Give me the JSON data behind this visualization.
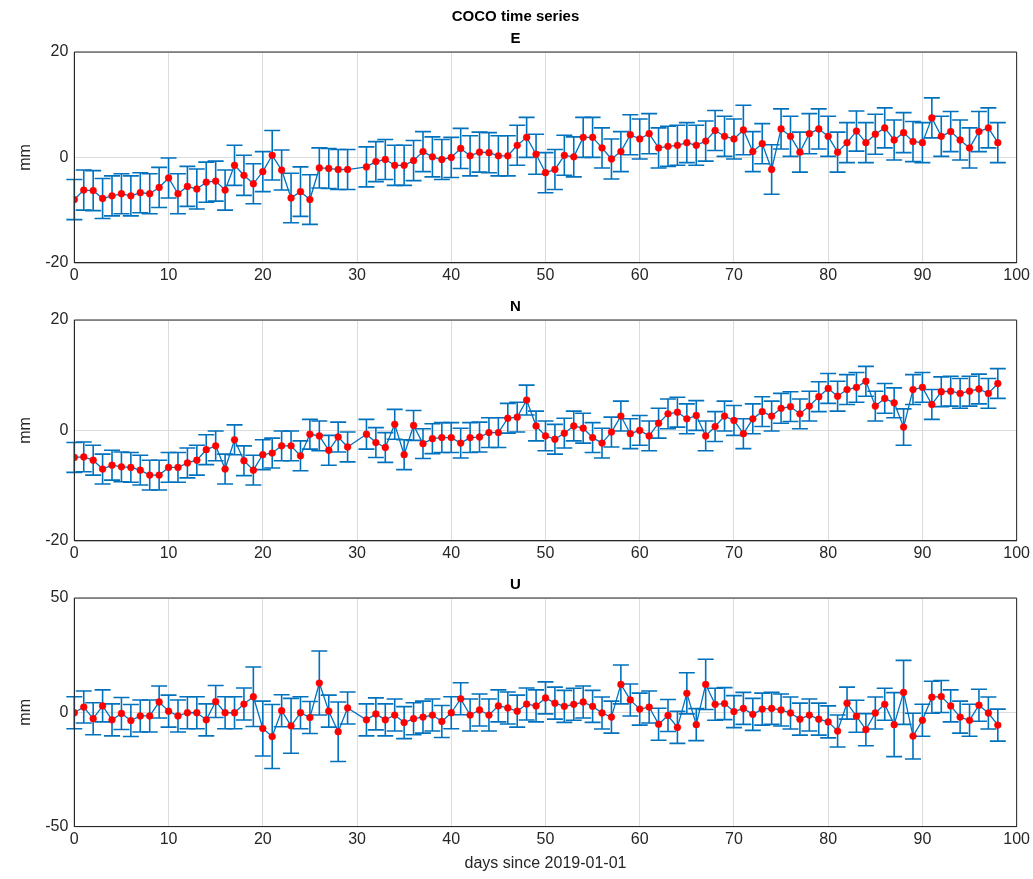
{
  "chart_data": [
    {
      "type": "line",
      "title": "COCO time series",
      "subtitle": "E",
      "ylabel": "mm",
      "x": [
        0,
        1,
        2,
        3,
        4,
        5,
        6,
        7,
        8,
        9,
        10,
        11,
        12,
        13,
        14,
        15,
        16,
        17,
        18,
        19,
        20,
        21,
        22,
        23,
        24,
        25,
        26,
        27,
        28,
        29,
        31,
        32,
        33,
        34,
        35,
        36,
        37,
        38,
        39,
        40,
        41,
        42,
        43,
        44,
        45,
        46,
        47,
        48,
        49,
        50,
        51,
        52,
        53,
        54,
        55,
        56,
        57,
        58,
        59,
        60,
        61,
        62,
        63,
        64,
        65,
        66,
        67,
        68,
        69,
        70,
        71,
        72,
        73,
        74,
        75,
        76,
        77,
        78,
        79,
        80,
        81,
        82,
        83,
        84,
        85,
        86,
        87,
        88,
        89,
        90,
        91,
        92,
        93,
        94,
        95,
        96,
        97,
        98
      ],
      "values": [
        -8,
        -6.2,
        -6.3,
        -7.8,
        -7.3,
        -6.9,
        -7.3,
        -6.7,
        -6.9,
        -5.7,
        -3.9,
        -6.9,
        -5.5,
        -6,
        -4.7,
        -4.5,
        -6.2,
        -1.5,
        -3.4,
        -5,
        -2.7,
        0.4,
        -2.4,
        -7.7,
        -6.5,
        -8,
        -2,
        -2.1,
        -2.3,
        -2.3,
        -1.8,
        -0.8,
        -0.4,
        -1.5,
        -1.5,
        -0.6,
        1.1,
        0.1,
        -0.4,
        0,
        1.7,
        0.3,
        1,
        0.9,
        0.3,
        0.3,
        2.3,
        3.8,
        0.6,
        -2.9,
        -2.3,
        0.4,
        0.1,
        3.8,
        3.8,
        1.8,
        -0.3,
        1.1,
        4.3,
        3.5,
        4.5,
        1.8,
        2.1,
        2.3,
        2.8,
        2.3,
        3.1,
        5.1,
        4,
        3.5,
        5.2,
        1.1,
        2.6,
        -2.3,
        5.4,
        4,
        1,
        4.5,
        5.4,
        4,
        1,
        2.8,
        5,
        2.8,
        4.4,
        5.6,
        3.3,
        4.7,
        3,
        2.8,
        7.5,
        4,
        4.9,
        3.3,
        1.8,
        4.9,
        5.6,
        2.8
      ],
      "errors": [
        3.8,
        3.8,
        3.8,
        3.8,
        3.8,
        3.8,
        3.8,
        3.8,
        3.8,
        3.8,
        3.8,
        3.8,
        3.8,
        3.8,
        3.8,
        3.8,
        3.8,
        3.8,
        3.8,
        3.8,
        3.8,
        4.7,
        3.8,
        4.7,
        4.7,
        4.7,
        3.8,
        3.8,
        3.8,
        3.8,
        3.8,
        3.8,
        3.8,
        3.8,
        3.8,
        3.8,
        3.8,
        3.8,
        3.8,
        3.8,
        3.8,
        3.8,
        3.8,
        3.8,
        3.8,
        3.8,
        3.8,
        3.8,
        3.8,
        3.8,
        3.8,
        3.8,
        3.8,
        3.8,
        3.8,
        3.8,
        3.8,
        3.8,
        3.8,
        3.8,
        3.8,
        3.8,
        3.8,
        3.8,
        3.8,
        3.8,
        3.8,
        3.8,
        3.8,
        3.8,
        4.7,
        3.8,
        3.8,
        4.7,
        3.8,
        3.8,
        3.8,
        3.8,
        3.8,
        3.8,
        3.8,
        3.8,
        3.8,
        3.8,
        3.8,
        3.8,
        3.8,
        3.8,
        3.8,
        3.8,
        3.8,
        3.8,
        3.8,
        3.8,
        3.8,
        3.8,
        3.8,
        3.8
      ],
      "color": "#0072bd",
      "colors": [
        "#ff0000",
        "#ff0000",
        "#ff0000",
        "#ff0000",
        "#ff0000",
        "#ff0000",
        "#ff0000",
        "#ff0000",
        "#ff0000",
        "#ff0000",
        "#ff0000",
        "#ff0000",
        "#ff0000",
        "#ff0000",
        "#ff0000",
        "#ff0000",
        "#ff0000",
        "#ff0000",
        "#ff0000",
        "#ff0000",
        "#ff0000",
        "#ff0000",
        "#ff0000",
        "#ff0000",
        "#ff0000",
        "#ff0000",
        "#ff0000",
        "#ff0000",
        "#ff0000",
        "#ff0000",
        "#ff0000",
        "#ff0000",
        "#ff0000",
        "#ff0000",
        "#ff0000",
        "#ff0000",
        "#ff0000",
        "#ff0000",
        "#ff0000",
        "#ff0000",
        "#ff0000",
        "#ff0000",
        "#ff0000",
        "#ff0000",
        "#ff0000",
        "#ff0000",
        "#ff0000",
        "#ff0000",
        "#ff0000",
        "#ff0000",
        "#ff0000",
        "#ff0000",
        "#ff0000",
        "#ff0000",
        "#ff0000",
        "#ff0000",
        "#ff0000",
        "#ff0000",
        "#ff0000",
        "#ff0000",
        "#ff0000",
        "#ff0000",
        "#ff0000",
        "#ff0000",
        "#ff0000",
        "#ff0000",
        "#ff0000",
        "#ff0000",
        "#ff0000",
        "#ff0000",
        "#ff0000",
        "#ff0000",
        "#ff0000",
        "#ff0000",
        "#ff0000",
        "#ff0000",
        "#ff0000",
        "#ff0000",
        "#ff0000",
        "#ff0000",
        "#ff0000",
        "#ff0000",
        "#ff0000",
        "#ff0000",
        "#ff0000",
        "#ff0000",
        "#ff0000",
        "#ff0000",
        "#ff0000",
        "#ff0000",
        "#ff0000",
        "#ff0000",
        "#ff0000",
        "#ff0000",
        "#ff0000",
        "#ff0000",
        "#ff0000",
        "#ff0000"
      ],
      "xlim": [
        0,
        100
      ],
      "xticks": [
        0,
        10,
        20,
        30,
        40,
        50,
        60,
        70,
        80,
        90,
        100
      ],
      "ylim": [
        -20,
        20
      ],
      "yticks": [
        -20,
        0,
        20
      ],
      "grid": true,
      "marker": "circle"
    },
    {
      "type": "line",
      "title": "N",
      "ylabel": "mm",
      "x": [
        0,
        1,
        2,
        3,
        4,
        5,
        6,
        7,
        8,
        9,
        10,
        11,
        12,
        13,
        14,
        15,
        16,
        17,
        18,
        19,
        20,
        21,
        22,
        23,
        24,
        25,
        26,
        27,
        28,
        29,
        31,
        32,
        33,
        34,
        35,
        36,
        37,
        38,
        39,
        40,
        41,
        42,
        43,
        44,
        45,
        46,
        47,
        48,
        49,
        50,
        51,
        52,
        53,
        54,
        55,
        56,
        57,
        58,
        59,
        60,
        61,
        62,
        63,
        64,
        65,
        66,
        67,
        68,
        69,
        70,
        71,
        72,
        73,
        74,
        75,
        76,
        77,
        78,
        79,
        80,
        81,
        82,
        83,
        84,
        85,
        86,
        87,
        88,
        89,
        90,
        91,
        92,
        93,
        94,
        95,
        96,
        97,
        98
      ],
      "values": [
        -4.9,
        -4.8,
        -5.4,
        -7,
        -6.3,
        -6.6,
        -6.7,
        -7.2,
        -8.1,
        -8.1,
        -6.7,
        -6.7,
        -5.9,
        -5.4,
        -3.5,
        -2.8,
        -7,
        -1.7,
        -5.5,
        -7.2,
        -4.4,
        -4.1,
        -2.8,
        -2.8,
        -4.6,
        -0.7,
        -1,
        -3.6,
        -1.2,
        -3,
        -0.7,
        -2.2,
        -3.1,
        1.1,
        -4.4,
        0.9,
        -2.4,
        -1.5,
        -1.3,
        -1.3,
        -2.3,
        -1.3,
        -1.2,
        -0.4,
        -0.4,
        2.2,
        2.4,
        5.5,
        0.8,
        -1,
        -1.6,
        -0.5,
        0.8,
        0.4,
        -1.3,
        -2.3,
        -0.3,
        2.6,
        -0.6,
        0,
        -1,
        1.3,
        3,
        3.3,
        2.1,
        2.7,
        -1,
        0.7,
        2.6,
        1.8,
        -0.6,
        2.1,
        3.4,
        2.6,
        4,
        4.3,
        3,
        4.4,
        6.1,
        7.6,
        6.2,
        7.4,
        7.8,
        8.9,
        4.4,
        5.8,
        5,
        0.6,
        7.4,
        7.8,
        4.7,
        7,
        7.1,
        6.7,
        7.1,
        7.5,
        6.7,
        8.5
      ],
      "errors": [
        2.7,
        2.7,
        2.7,
        2.7,
        2.7,
        2.7,
        2.7,
        2.7,
        2.7,
        2.7,
        2.7,
        2.7,
        2.7,
        2.7,
        2.7,
        2.7,
        2.7,
        2.7,
        2.7,
        2.7,
        2.7,
        2.7,
        2.7,
        2.7,
        2.7,
        2.7,
        2.7,
        2.7,
        2.7,
        2.7,
        2.7,
        2.7,
        2.7,
        2.7,
        2.7,
        2.7,
        2.7,
        2.7,
        2.7,
        2.7,
        2.7,
        2.7,
        2.7,
        2.7,
        2.7,
        2.7,
        2.7,
        2.7,
        2.7,
        2.7,
        2.7,
        2.7,
        2.7,
        2.7,
        2.7,
        2.7,
        2.7,
        2.7,
        2.7,
        2.7,
        2.7,
        2.7,
        2.7,
        2.7,
        2.7,
        2.7,
        2.7,
        2.7,
        2.7,
        2.7,
        2.7,
        2.7,
        2.7,
        2.7,
        2.7,
        2.7,
        2.7,
        2.7,
        2.7,
        2.7,
        2.7,
        2.7,
        2.7,
        2.7,
        2.7,
        2.7,
        2.7,
        3.3,
        2.7,
        2.7,
        2.7,
        2.7,
        2.7,
        2.7,
        2.7,
        2.7,
        2.7,
        2.7
      ],
      "color": "#0072bd",
      "colors": [
        "#ff0000",
        "#ff0000",
        "#ff0000",
        "#ff0000",
        "#ff0000",
        "#ff0000",
        "#ff0000",
        "#ff0000",
        "#ff0000",
        "#ff0000",
        "#ff0000",
        "#ff0000",
        "#ff0000",
        "#ff0000",
        "#ff0000",
        "#ff0000",
        "#ff0000",
        "#ff0000",
        "#ff0000",
        "#ff0000",
        "#ff0000",
        "#ff0000",
        "#ff0000",
        "#ff0000",
        "#ff0000",
        "#ff0000",
        "#ff0000",
        "#ff0000",
        "#ff0000",
        "#ff0000",
        "#ff0000",
        "#ff0000",
        "#ff0000",
        "#ff0000",
        "#ff0000",
        "#ff0000",
        "#ff0000",
        "#ff0000",
        "#ff0000",
        "#ff0000",
        "#ff0000",
        "#ff0000",
        "#ff0000",
        "#ff0000",
        "#ff0000",
        "#ff0000",
        "#ff0000",
        "#ff0000",
        "#ff0000",
        "#ff0000",
        "#ff0000",
        "#ff0000",
        "#ff0000",
        "#ff0000",
        "#ff0000",
        "#ff0000",
        "#ff0000",
        "#ff0000",
        "#ff0000",
        "#ff0000",
        "#ff0000",
        "#ff0000",
        "#ff0000",
        "#ff0000",
        "#ff0000",
        "#ff0000",
        "#ff0000",
        "#ff0000",
        "#ff0000",
        "#ff0000",
        "#ff0000",
        "#ff0000",
        "#ff0000",
        "#ff0000",
        "#ff0000",
        "#ff0000",
        "#ff0000",
        "#ff0000",
        "#ff0000",
        "#ff0000",
        "#ff0000",
        "#ff0000",
        "#ff0000",
        "#ff0000",
        "#ff0000",
        "#ff0000",
        "#ff0000",
        "#ff0000",
        "#ff0000",
        "#ff0000",
        "#ff0000",
        "#ff0000",
        "#ff0000",
        "#ff0000",
        "#ff0000",
        "#ff0000",
        "#ff0000",
        "#ff0000"
      ],
      "xlim": [
        0,
        100
      ],
      "xticks": [
        0,
        10,
        20,
        30,
        40,
        50,
        60,
        70,
        80,
        90,
        100
      ],
      "ylim": [
        -20,
        20
      ],
      "yticks": [
        -20,
        0,
        20
      ],
      "grid": true,
      "marker": "circle"
    },
    {
      "type": "line",
      "title": "U",
      "ylabel": "mm",
      "xlabel": "days since 2019-01-01",
      "x": [
        0,
        1,
        2,
        3,
        4,
        5,
        6,
        7,
        8,
        9,
        10,
        11,
        12,
        13,
        14,
        15,
        16,
        17,
        18,
        19,
        20,
        21,
        22,
        23,
        24,
        25,
        26,
        27,
        28,
        29,
        31,
        32,
        33,
        34,
        35,
        36,
        37,
        38,
        39,
        40,
        41,
        42,
        43,
        44,
        45,
        46,
        47,
        48,
        49,
        50,
        51,
        52,
        53,
        54,
        55,
        56,
        57,
        58,
        59,
        60,
        61,
        62,
        63,
        64,
        65,
        66,
        67,
        68,
        69,
        70,
        71,
        72,
        73,
        74,
        75,
        76,
        77,
        78,
        79,
        80,
        81,
        82,
        83,
        84,
        85,
        86,
        87,
        88,
        89,
        90,
        91,
        92,
        93,
        94,
        95,
        96,
        97,
        98
      ],
      "values": [
        -0.2,
        2.3,
        -2.8,
        2.8,
        -3.3,
        -0.5,
        -3.6,
        -1.6,
        -1.6,
        4.5,
        0.5,
        -1.6,
        -0.2,
        -0.2,
        -3.3,
        4.7,
        -0.2,
        -0.2,
        3.6,
        6.8,
        -7.1,
        -10.6,
        0.7,
        -5.9,
        -0.2,
        -2.3,
        12.8,
        0.5,
        -8.5,
        1.9,
        -3.3,
        -0.7,
        -3.3,
        -1.2,
        -4.5,
        -2.8,
        -2.1,
        -1.2,
        -4,
        -0.2,
        5.9,
        -1.2,
        1,
        -1.2,
        2.8,
        1.9,
        0.5,
        3.6,
        2.8,
        6.3,
        4,
        2.6,
        3.5,
        4.5,
        2.6,
        -0.3,
        -2.1,
        12.2,
        5.4,
        1.4,
        2.3,
        -5.2,
        -1.4,
        -6.6,
        8.3,
        -5.4,
        12.2,
        3.5,
        3.8,
        0.3,
        1.7,
        -0.9,
        1.4,
        1.7,
        1,
        -0.3,
        -3,
        -1.2,
        -3,
        -4.2,
        -8.2,
        4,
        -1.7,
        -7.6,
        -0.3,
        3.5,
        -5.4,
        8.7,
        -10.4,
        -3.5,
        6.6,
        6.9,
        2.8,
        -2.1,
        -3.5,
        3.1,
        -0.3,
        -5.6
      ],
      "errors": [
        7,
        7,
        7,
        7,
        7,
        7,
        7,
        7,
        7,
        7,
        7,
        7,
        7,
        7,
        7,
        7,
        7,
        7,
        7,
        13,
        12,
        14,
        7,
        12,
        7,
        7,
        14,
        7,
        13,
        7,
        7,
        7,
        7,
        7,
        7,
        7,
        7,
        7,
        7,
        7,
        7,
        7,
        7,
        7,
        7,
        7,
        7,
        7,
        7,
        7,
        7,
        7,
        7,
        7,
        7,
        7,
        7,
        8.5,
        7,
        7,
        7,
        7,
        7,
        7,
        9,
        7,
        11,
        7,
        7,
        7,
        7,
        7,
        7,
        7,
        7,
        7,
        7,
        7,
        7,
        7,
        7,
        7,
        7,
        7,
        7,
        7,
        14,
        14,
        10,
        7,
        7,
        7,
        7,
        7,
        7,
        7,
        7,
        7
      ],
      "color": "#0072bd",
      "colors": [
        "#ff0000",
        "#ff0000",
        "#ff0000",
        "#ff0000",
        "#ff0000",
        "#ff0000",
        "#ff0000",
        "#ff0000",
        "#ff0000",
        "#ff0000",
        "#ff0000",
        "#ff0000",
        "#ff0000",
        "#ff0000",
        "#ff0000",
        "#ff0000",
        "#ff0000",
        "#ff0000",
        "#ff0000",
        "#ff0000",
        "#ff0000",
        "#ff0000",
        "#ff0000",
        "#ff0000",
        "#ff0000",
        "#ff0000",
        "#ff0000",
        "#ff0000",
        "#ff0000",
        "#ff0000",
        "#ff0000",
        "#ff0000",
        "#ff0000",
        "#ff0000",
        "#ff0000",
        "#ff0000",
        "#ff0000",
        "#ff0000",
        "#ff0000",
        "#ff0000",
        "#ff0000",
        "#ff0000",
        "#ff0000",
        "#ff0000",
        "#ff0000",
        "#ff0000",
        "#ff0000",
        "#ff0000",
        "#ff0000",
        "#ff0000",
        "#ff0000",
        "#ff0000",
        "#ff0000",
        "#ff0000",
        "#ff0000",
        "#ff0000",
        "#ff0000",
        "#ff0000",
        "#ff0000",
        "#ff0000",
        "#ff0000",
        "#ff0000",
        "#ff0000",
        "#ff0000",
        "#ff0000",
        "#ff0000",
        "#ff0000",
        "#ff0000",
        "#ff0000",
        "#ff0000",
        "#ff0000",
        "#ff0000",
        "#ff0000",
        "#ff0000",
        "#ff0000",
        "#ff0000",
        "#ff0000",
        "#ff0000",
        "#ff0000",
        "#ff0000",
        "#ff0000",
        "#ff0000",
        "#ff0000",
        "#ff0000",
        "#ff0000",
        "#ff0000",
        "#ff0000",
        "#ff0000",
        "#ff0000",
        "#ff0000",
        "#ff0000",
        "#ff0000",
        "#ff0000",
        "#ff0000",
        "#ff0000",
        "#ff0000",
        "#ff0000",
        "#ff0000"
      ],
      "xlim": [
        0,
        100
      ],
      "xticks": [
        0,
        10,
        20,
        30,
        40,
        50,
        60,
        70,
        80,
        90,
        100
      ],
      "ylim": [
        -50,
        50
      ],
      "yticks": [
        -50,
        0,
        50
      ],
      "grid": true,
      "marker": "circle"
    }
  ]
}
